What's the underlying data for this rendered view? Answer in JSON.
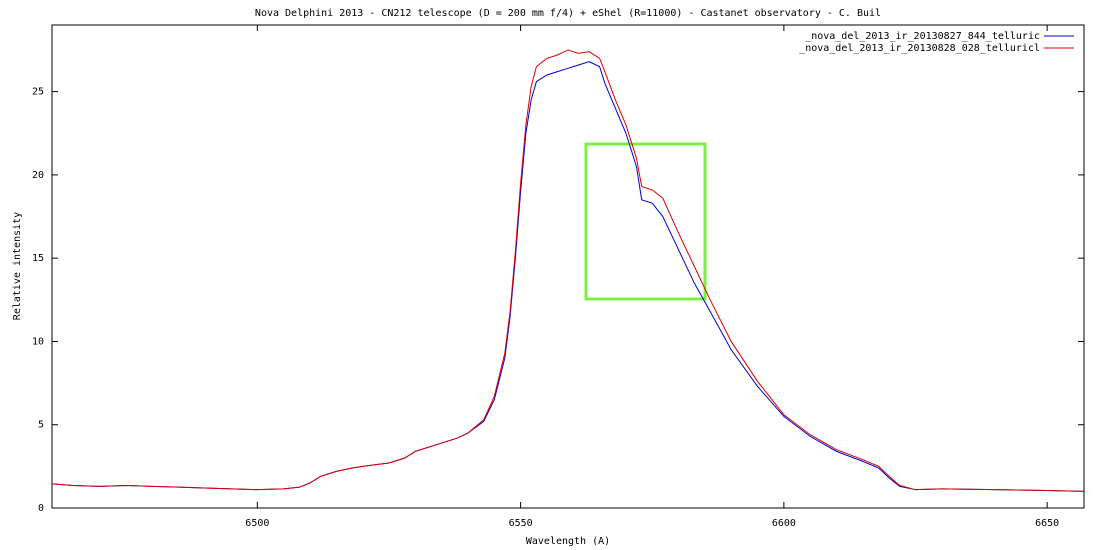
{
  "chart_data": {
    "type": "line",
    "title": "Nova Delphini 2013 - CN212 telescope (D = 200 mm f/4) + eShel (R=11000) -  Castanet observatory - C. Buil",
    "x_label": "Wavelength (A)",
    "y_label": "Relative intensity",
    "xlim": [
      6461,
      6657
    ],
    "ylim": [
      0,
      29
    ],
    "xticks": [
      6500,
      6550,
      6600,
      6650
    ],
    "yticks": [
      0,
      5,
      10,
      15,
      20,
      25
    ],
    "grid": false,
    "legend": "top-right",
    "x": [
      6461,
      6465,
      6470,
      6475,
      6480,
      6485,
      6490,
      6495,
      6500,
      6505,
      6508,
      6510,
      6512,
      6515,
      6518,
      6520,
      6525,
      6528,
      6530,
      6535,
      6538,
      6540,
      6543,
      6545,
      6547,
      6548,
      6549,
      6550,
      6551,
      6552,
      6553,
      6555,
      6557,
      6559,
      6561,
      6563,
      6565,
      6566,
      6568,
      6570,
      6572,
      6573,
      6575,
      6577,
      6580,
      6583,
      6586,
      6590,
      6595,
      6600,
      6605,
      6610,
      6615,
      6618,
      6620,
      6622,
      6625,
      6630,
      6640,
      6650,
      6657
    ],
    "series": [
      {
        "name": "_nova_del_2013_ir_20130827_844_telluric",
        "color": "#0000cc",
        "values": [
          1.45,
          1.35,
          1.3,
          1.35,
          1.3,
          1.25,
          1.2,
          1.15,
          1.1,
          1.15,
          1.25,
          1.5,
          1.9,
          2.2,
          2.4,
          2.5,
          2.7,
          3.0,
          3.4,
          3.9,
          4.2,
          4.5,
          5.2,
          6.5,
          9.0,
          11.5,
          15,
          19,
          22.5,
          24.5,
          25.6,
          26.0,
          26.2,
          26.4,
          26.6,
          26.8,
          26.5,
          25.5,
          24,
          22.5,
          20.5,
          18.5,
          18.3,
          17.5,
          15.5,
          13.5,
          11.8,
          9.5,
          7.3,
          5.5,
          4.3,
          3.4,
          2.8,
          2.4,
          1.8,
          1.3,
          1.1,
          1.15,
          1.1,
          1.05,
          1.0
        ]
      },
      {
        "name": "_nova_del_2013_ir_20130828_028_telluricl",
        "color": "#dd0000",
        "values": [
          1.45,
          1.35,
          1.3,
          1.35,
          1.3,
          1.25,
          1.2,
          1.15,
          1.1,
          1.15,
          1.25,
          1.5,
          1.9,
          2.2,
          2.4,
          2.5,
          2.7,
          3.0,
          3.4,
          3.9,
          4.2,
          4.5,
          5.3,
          6.7,
          9.3,
          11.8,
          15.4,
          19.5,
          23,
          25.3,
          26.5,
          27,
          27.2,
          27.5,
          27.3,
          27.4,
          27,
          26.2,
          24.5,
          23,
          21,
          19.3,
          19.1,
          18.6,
          16.5,
          14.5,
          12.5,
          10,
          7.6,
          5.6,
          4.4,
          3.5,
          2.9,
          2.5,
          1.9,
          1.35,
          1.1,
          1.15,
          1.1,
          1.05,
          1.0
        ]
      }
    ]
  }
}
